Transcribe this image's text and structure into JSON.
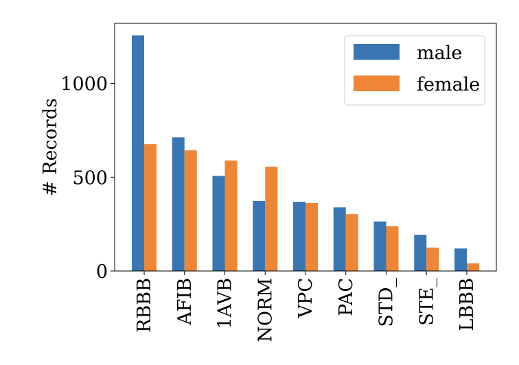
{
  "chart_data": {
    "type": "bar",
    "title": "",
    "xlabel": "",
    "ylabel": "# Records",
    "categories": [
      "RBBB",
      "AFIB",
      "1AVB",
      "NORM",
      "VPC",
      "PAC",
      "STD_",
      "STE_",
      "LBBB"
    ],
    "series": [
      {
        "name": "male",
        "color": "#3a76b3",
        "values": [
          1256,
          712,
          507,
          373,
          369,
          339,
          264,
          193,
          120
        ]
      },
      {
        "name": "female",
        "color": "#ef8636",
        "values": [
          676,
          643,
          589,
          556,
          362,
          303,
          239,
          125,
          41
        ]
      }
    ],
    "ylim": [
      0,
      1320
    ],
    "yticks": [
      0,
      500,
      1000
    ],
    "grid": false,
    "legend_position": "top-right"
  }
}
